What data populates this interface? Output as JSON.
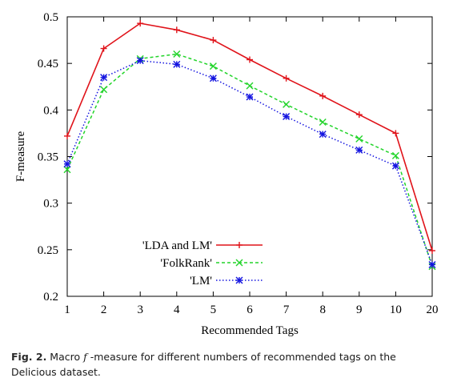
{
  "chart_data": {
    "type": "line",
    "xlabel": "Recommended Tags",
    "ylabel": "F-measure",
    "categories": [
      "1",
      "2",
      "3",
      "4",
      "5",
      "6",
      "7",
      "8",
      "9",
      "10",
      "20"
    ],
    "ylim": [
      0.2,
      0.5
    ],
    "yticks": [
      "0.2",
      "0.25",
      "0.3",
      "0.35",
      "0.4",
      "0.45",
      "0.5"
    ],
    "legend_position": "bottom-center",
    "series": [
      {
        "name": "'LDA and LM'",
        "color": "#e0131a",
        "style": "solid",
        "marker": "plus",
        "values": [
          0.372,
          0.466,
          0.493,
          0.486,
          0.475,
          0.454,
          0.434,
          0.415,
          0.395,
          0.375,
          0.249
        ]
      },
      {
        "name": "'FolkRank'",
        "color": "#22d42a",
        "style": "dashed",
        "marker": "cross",
        "values": [
          0.336,
          0.422,
          0.455,
          0.46,
          0.447,
          0.426,
          0.406,
          0.387,
          0.369,
          0.351,
          0.232
        ]
      },
      {
        "name": "'LM'",
        "color": "#1414e0",
        "style": "dotted",
        "marker": "star",
        "values": [
          0.342,
          0.435,
          0.453,
          0.449,
          0.434,
          0.414,
          0.393,
          0.374,
          0.357,
          0.34,
          0.234
        ]
      }
    ]
  },
  "caption": {
    "label": "Fig. 2.",
    "text_before": " Macro ",
    "variable": "f",
    "text_after": " -measure for different numbers of recommended tags on the Delicious dataset."
  }
}
